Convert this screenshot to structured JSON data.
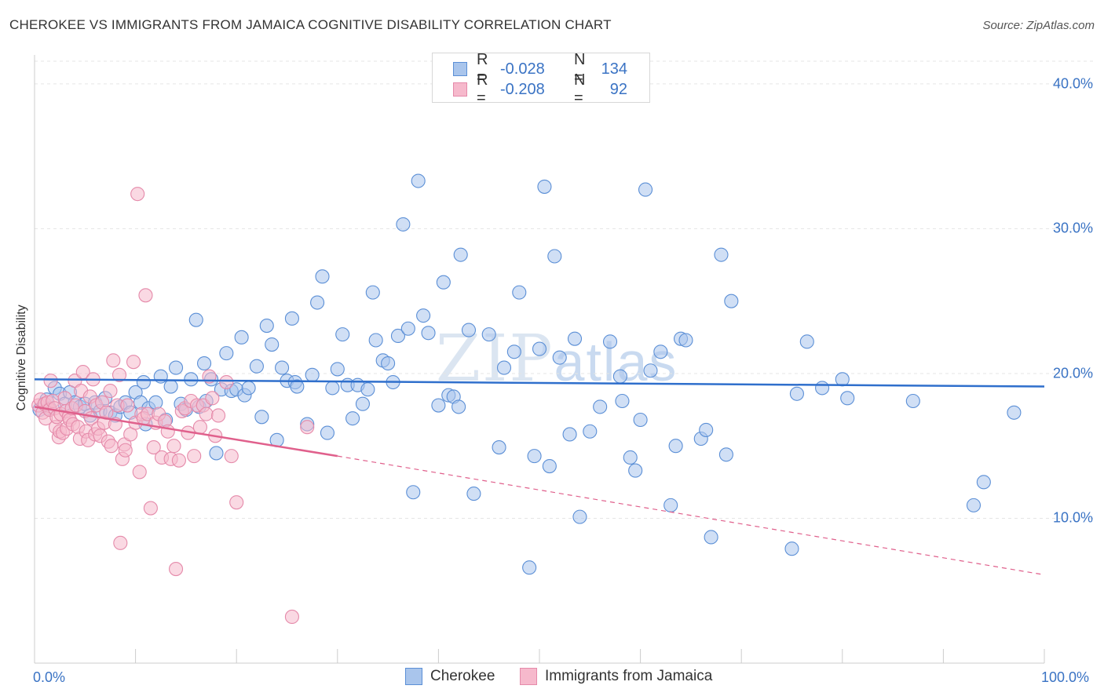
{
  "title": "CHEROKEE VS IMMIGRANTS FROM JAMAICA COGNITIVE DISABILITY CORRELATION CHART",
  "source": "Source: ZipAtlas.com",
  "watermark": {
    "zip": "ZIP",
    "atlas": "atlas"
  },
  "legend_top": {
    "rows": [
      {
        "r_label": "R =",
        "r_value": "-0.028",
        "n_label": "N =",
        "n_value": "134"
      },
      {
        "r_label": "R =",
        "r_value": "-0.208",
        "n_label": "N =",
        "n_value": "92"
      }
    ]
  },
  "colors": {
    "blue_fill": "#a9c5ec",
    "blue_stroke": "#5b8fd6",
    "blue_line": "#2f6fcc",
    "pink_fill": "#f6b9cc",
    "pink_stroke": "#e58aaa",
    "pink_line": "#e0608c",
    "grid": "#e5e5e5",
    "axis_text": "#3a73c4"
  },
  "chart_data": {
    "type": "scatter",
    "title": "CHEROKEE VS IMMIGRANTS FROM JAMAICA COGNITIVE DISABILITY CORRELATION CHART",
    "xlabel": "",
    "ylabel": "Cognitive Disability",
    "xlim": [
      0,
      100
    ],
    "ylim": [
      0,
      42
    ],
    "x_tick_labels": [
      "0.0%",
      "100.0%"
    ],
    "y_ticks": [
      10,
      20,
      30,
      40
    ],
    "y_tick_labels": [
      "10.0%",
      "20.0%",
      "30.0%",
      "40.0%"
    ],
    "grid": true,
    "legend_position": "bottom",
    "series": [
      {
        "name": "Cherokee",
        "r": -0.028,
        "n": 134,
        "trend": {
          "x": [
            0,
            100
          ],
          "y": [
            19.6,
            19.1
          ],
          "style": "solid"
        },
        "points": [
          [
            0.5,
            17.5
          ],
          [
            1.2,
            18.2
          ],
          [
            1.5,
            17.6
          ],
          [
            2.0,
            19.0
          ],
          [
            2.5,
            18.6
          ],
          [
            3,
            17.9
          ],
          [
            3.5,
            18.7
          ],
          [
            4,
            18.0
          ],
          [
            4.5,
            17.7
          ],
          [
            5,
            17.9
          ],
          [
            5.5,
            17.1
          ],
          [
            6,
            18.0
          ],
          [
            6.5,
            17.4
          ],
          [
            7,
            18.3
          ],
          [
            7.5,
            17.3
          ],
          [
            8,
            17.1
          ],
          [
            8.5,
            17.7
          ],
          [
            9,
            18.0
          ],
          [
            9.5,
            17.3
          ],
          [
            10,
            18.7
          ],
          [
            10.5,
            18.0
          ],
          [
            10.8,
            19.4
          ],
          [
            11,
            16.5
          ],
          [
            11.3,
            17.6
          ],
          [
            12,
            18.0
          ],
          [
            12.5,
            19.8
          ],
          [
            13,
            16.8
          ],
          [
            13.5,
            19.1
          ],
          [
            14,
            20.4
          ],
          [
            14.5,
            17.9
          ],
          [
            15,
            17.5
          ],
          [
            15.5,
            19.6
          ],
          [
            16,
            23.7
          ],
          [
            16.3,
            17.7
          ],
          [
            16.8,
            20.7
          ],
          [
            17,
            18.1
          ],
          [
            17.5,
            19.6
          ],
          [
            18,
            14.5
          ],
          [
            18.5,
            18.9
          ],
          [
            19,
            21.4
          ],
          [
            19.5,
            18.8
          ],
          [
            20,
            18.9
          ],
          [
            20.5,
            22.5
          ],
          [
            20.8,
            18.5
          ],
          [
            21.2,
            19.0
          ],
          [
            22,
            20.5
          ],
          [
            22.5,
            17.0
          ],
          [
            23,
            23.3
          ],
          [
            23.5,
            22.0
          ],
          [
            24,
            15.4
          ],
          [
            24.5,
            20.4
          ],
          [
            25,
            19.5
          ],
          [
            25.5,
            23.8
          ],
          [
            25.8,
            19.4
          ],
          [
            26,
            19.1
          ],
          [
            27,
            16.5
          ],
          [
            27.5,
            19.9
          ],
          [
            28,
            24.9
          ],
          [
            28.5,
            26.7
          ],
          [
            29,
            15.9
          ],
          [
            29.5,
            19.0
          ],
          [
            30,
            20.3
          ],
          [
            30.5,
            22.7
          ],
          [
            31,
            19.2
          ],
          [
            31.5,
            16.9
          ],
          [
            32,
            19.2
          ],
          [
            32.5,
            17.9
          ],
          [
            33,
            18.9
          ],
          [
            33.5,
            25.6
          ],
          [
            33.8,
            22.3
          ],
          [
            34.5,
            20.9
          ],
          [
            35,
            20.7
          ],
          [
            35.5,
            19.4
          ],
          [
            36,
            22.6
          ],
          [
            36.5,
            30.3
          ],
          [
            37,
            23.1
          ],
          [
            37.5,
            11.8
          ],
          [
            38,
            33.3
          ],
          [
            38.5,
            24.0
          ],
          [
            39,
            22.8
          ],
          [
            40,
            17.8
          ],
          [
            40.5,
            26.3
          ],
          [
            41,
            18.5
          ],
          [
            41.5,
            18.4
          ],
          [
            42,
            17.7
          ],
          [
            42.2,
            28.2
          ],
          [
            43,
            23.0
          ],
          [
            43.5,
            11.7
          ],
          [
            45,
            22.7
          ],
          [
            46,
            14.9
          ],
          [
            46.5,
            20.4
          ],
          [
            47.5,
            21.5
          ],
          [
            48,
            25.6
          ],
          [
            49,
            6.6
          ],
          [
            49.5,
            14.3
          ],
          [
            50,
            21.7
          ],
          [
            50.5,
            32.9
          ],
          [
            51,
            13.6
          ],
          [
            51.5,
            28.1
          ],
          [
            52,
            21.1
          ],
          [
            53,
            15.8
          ],
          [
            53.5,
            22.4
          ],
          [
            54,
            10.1
          ],
          [
            55,
            16.0
          ],
          [
            56,
            17.7
          ],
          [
            57,
            22.2
          ],
          [
            58,
            19.8
          ],
          [
            58.2,
            18.1
          ],
          [
            59,
            14.2
          ],
          [
            59.5,
            13.3
          ],
          [
            60,
            16.8
          ],
          [
            60.5,
            32.7
          ],
          [
            61,
            20.2
          ],
          [
            62,
            21.5
          ],
          [
            63,
            10.9
          ],
          [
            63.5,
            15.0
          ],
          [
            64,
            22.4
          ],
          [
            64.5,
            22.3
          ],
          [
            66,
            15.5
          ],
          [
            66.5,
            16.1
          ],
          [
            67,
            8.7
          ],
          [
            68,
            28.2
          ],
          [
            68.5,
            14.4
          ],
          [
            69,
            25.0
          ],
          [
            75,
            7.9
          ],
          [
            75.5,
            18.6
          ],
          [
            76.5,
            22.2
          ],
          [
            78,
            19.0
          ],
          [
            80,
            19.6
          ],
          [
            80.5,
            18.3
          ],
          [
            87,
            18.1
          ],
          [
            93,
            10.9
          ],
          [
            94,
            12.5
          ],
          [
            97,
            17.3
          ]
        ]
      },
      {
        "name": "Immigrants from Jamaica",
        "r": -0.208,
        "n": 92,
        "trend": {
          "x": [
            0,
            30,
            100
          ],
          "y": [
            17.7,
            14.3,
            6.1
          ],
          "style": "solid-then-dashed"
        },
        "points": [
          [
            0.4,
            17.8
          ],
          [
            0.6,
            18.2
          ],
          [
            0.8,
            17.3
          ],
          [
            1.0,
            17.9
          ],
          [
            1.1,
            16.9
          ],
          [
            1.3,
            18.0
          ],
          [
            1.5,
            17.5
          ],
          [
            1.6,
            19.5
          ],
          [
            1.8,
            18.1
          ],
          [
            2.0,
            17.6
          ],
          [
            2.1,
            16.3
          ],
          [
            2.2,
            17.0
          ],
          [
            2.4,
            15.6
          ],
          [
            2.5,
            16.0
          ],
          [
            2.6,
            17.2
          ],
          [
            2.8,
            15.9
          ],
          [
            3.0,
            18.3
          ],
          [
            3.1,
            17.4
          ],
          [
            3.2,
            16.2
          ],
          [
            3.4,
            17.0
          ],
          [
            3.5,
            16.8
          ],
          [
            3.7,
            17.6
          ],
          [
            3.8,
            16.5
          ],
          [
            4.0,
            19.5
          ],
          [
            4.1,
            17.8
          ],
          [
            4.3,
            16.3
          ],
          [
            4.5,
            15.5
          ],
          [
            4.6,
            18.8
          ],
          [
            4.8,
            20.1
          ],
          [
            5.0,
            17.4
          ],
          [
            5.1,
            16.0
          ],
          [
            5.3,
            15.4
          ],
          [
            5.5,
            18.4
          ],
          [
            5.6,
            16.9
          ],
          [
            5.8,
            19.6
          ],
          [
            6.0,
            15.8
          ],
          [
            6.1,
            17.8
          ],
          [
            6.3,
            16.2
          ],
          [
            6.5,
            15.7
          ],
          [
            6.7,
            18.0
          ],
          [
            6.9,
            16.6
          ],
          [
            7.1,
            17.3
          ],
          [
            7.3,
            15.3
          ],
          [
            7.5,
            18.8
          ],
          [
            7.6,
            15.0
          ],
          [
            7.8,
            20.9
          ],
          [
            8.0,
            16.5
          ],
          [
            8.2,
            17.8
          ],
          [
            8.4,
            19.9
          ],
          [
            8.5,
            8.3
          ],
          [
            8.7,
            14.1
          ],
          [
            8.9,
            15.1
          ],
          [
            9.0,
            14.7
          ],
          [
            9.2,
            17.8
          ],
          [
            9.5,
            15.8
          ],
          [
            9.8,
            20.8
          ],
          [
            10.0,
            16.6
          ],
          [
            10.2,
            32.4
          ],
          [
            10.4,
            13.2
          ],
          [
            10.6,
            17.2
          ],
          [
            10.8,
            16.9
          ],
          [
            11.0,
            25.4
          ],
          [
            11.2,
            17.2
          ],
          [
            11.5,
            10.7
          ],
          [
            11.8,
            14.9
          ],
          [
            12.0,
            16.6
          ],
          [
            12.3,
            17.2
          ],
          [
            12.6,
            14.2
          ],
          [
            12.9,
            16.7
          ],
          [
            13.2,
            16.0
          ],
          [
            13.5,
            14.1
          ],
          [
            13.8,
            15.0
          ],
          [
            14.0,
            6.5
          ],
          [
            14.3,
            14.0
          ],
          [
            14.6,
            17.4
          ],
          [
            14.9,
            17.6
          ],
          [
            15.2,
            15.9
          ],
          [
            15.5,
            18.1
          ],
          [
            15.8,
            14.3
          ],
          [
            16.1,
            17.8
          ],
          [
            16.4,
            16.3
          ],
          [
            16.7,
            17.8
          ],
          [
            17.0,
            17.2
          ],
          [
            17.3,
            19.8
          ],
          [
            17.6,
            18.3
          ],
          [
            17.9,
            15.7
          ],
          [
            18.2,
            17.1
          ],
          [
            19.0,
            19.4
          ],
          [
            19.5,
            14.3
          ],
          [
            20.0,
            11.1
          ],
          [
            25.5,
            3.2
          ],
          [
            27.0,
            16.3
          ]
        ]
      }
    ]
  }
}
